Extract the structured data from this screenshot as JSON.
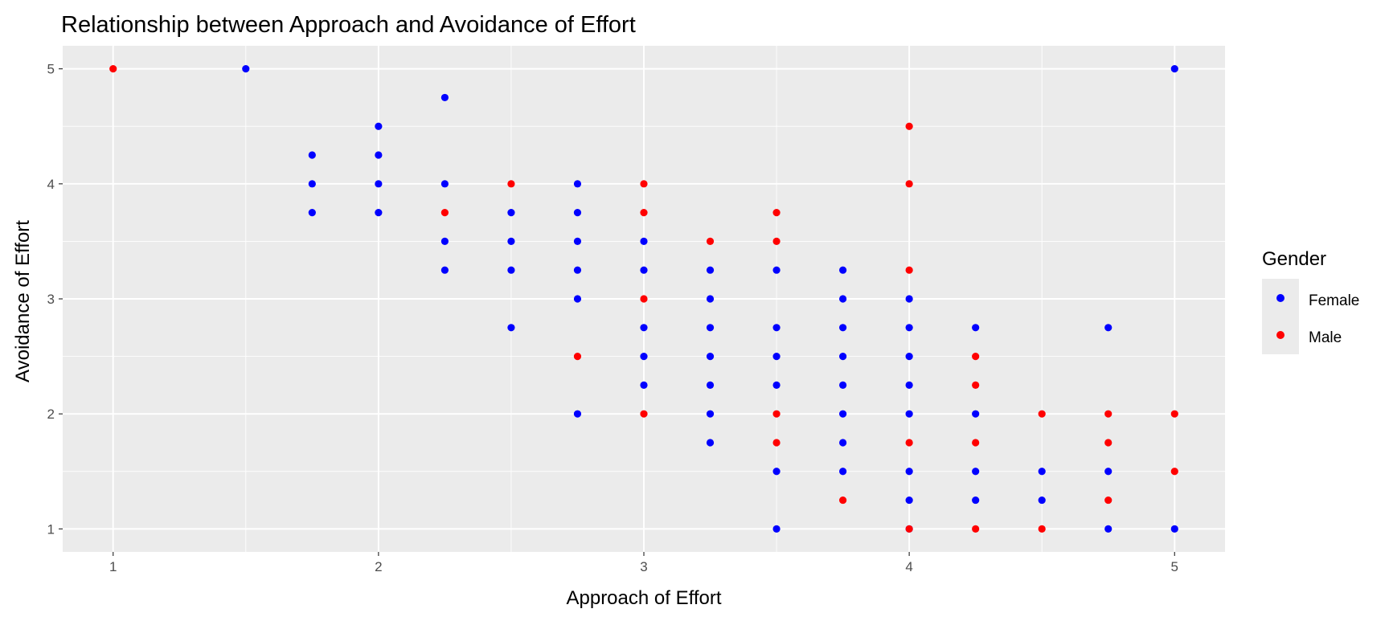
{
  "chart_data": {
    "type": "scatter",
    "title": "Relationship between Approach and Avoidance of Effort",
    "xlabel": "Approach of Effort",
    "ylabel": "Avoidance of Effort",
    "xlim": [
      0.81,
      5.19
    ],
    "ylim": [
      0.8,
      5.2
    ],
    "x_ticks": [
      "1",
      "2",
      "3",
      "4",
      "5"
    ],
    "y_ticks": [
      "1",
      "2",
      "3",
      "4",
      "5"
    ],
    "grid": true,
    "legend": {
      "title": "Gender",
      "position": "right"
    },
    "colors": {
      "panel": "#ebebeb",
      "grid": "#ffffff",
      "Female": "#0000ff",
      "Male": "#ff0000"
    },
    "series": [
      {
        "name": "Female",
        "color": "#0000ff",
        "points": [
          [
            1.5,
            5
          ],
          [
            1.75,
            4.25
          ],
          [
            1.75,
            4
          ],
          [
            1.75,
            3.75
          ],
          [
            2,
            4.5
          ],
          [
            2,
            4.25
          ],
          [
            2,
            4
          ],
          [
            2,
            3.75
          ],
          [
            2.25,
            4.75
          ],
          [
            2.25,
            4
          ],
          [
            2.25,
            3.5
          ],
          [
            2.25,
            3.25
          ],
          [
            2.5,
            3.75
          ],
          [
            2.5,
            3.5
          ],
          [
            2.5,
            3.25
          ],
          [
            2.5,
            2.75
          ],
          [
            2.75,
            4
          ],
          [
            2.75,
            3.75
          ],
          [
            2.75,
            3.5
          ],
          [
            2.75,
            3.25
          ],
          [
            2.75,
            3
          ],
          [
            2.75,
            2
          ],
          [
            3,
            3.5
          ],
          [
            3,
            3.25
          ],
          [
            3,
            2.75
          ],
          [
            3,
            2.5
          ],
          [
            3,
            2.25
          ],
          [
            3.25,
            3.25
          ],
          [
            3.25,
            3
          ],
          [
            3.25,
            2.75
          ],
          [
            3.25,
            2.5
          ],
          [
            3.25,
            2.25
          ],
          [
            3.25,
            2
          ],
          [
            3.25,
            1.75
          ],
          [
            3.5,
            3.25
          ],
          [
            3.5,
            2.75
          ],
          [
            3.5,
            2.5
          ],
          [
            3.5,
            2.25
          ],
          [
            3.5,
            1.5
          ],
          [
            3.5,
            1
          ],
          [
            3.75,
            3.25
          ],
          [
            3.75,
            3
          ],
          [
            3.75,
            2.75
          ],
          [
            3.75,
            2.5
          ],
          [
            3.75,
            2.25
          ],
          [
            3.75,
            2
          ],
          [
            3.75,
            1.75
          ],
          [
            3.75,
            1.5
          ],
          [
            4,
            3
          ],
          [
            4,
            2.75
          ],
          [
            4,
            2.5
          ],
          [
            4,
            2.25
          ],
          [
            4,
            2
          ],
          [
            4,
            1.5
          ],
          [
            4,
            1.25
          ],
          [
            4,
            1
          ],
          [
            4.25,
            2.75
          ],
          [
            4.25,
            2
          ],
          [
            4.25,
            1.5
          ],
          [
            4.25,
            1.25
          ],
          [
            4.5,
            1.5
          ],
          [
            4.5,
            1.25
          ],
          [
            4.75,
            2.75
          ],
          [
            4.75,
            1.5
          ],
          [
            4.75,
            1
          ],
          [
            5,
            5
          ],
          [
            5,
            1
          ]
        ]
      },
      {
        "name": "Male",
        "color": "#ff0000",
        "points": [
          [
            1,
            5
          ],
          [
            2.25,
            3.75
          ],
          [
            2.5,
            4
          ],
          [
            2.75,
            2.5
          ],
          [
            3,
            4
          ],
          [
            3,
            3.75
          ],
          [
            3,
            3
          ],
          [
            3,
            2
          ],
          [
            3.25,
            3.5
          ],
          [
            3.5,
            3.75
          ],
          [
            3.5,
            3.5
          ],
          [
            3.5,
            2
          ],
          [
            3.5,
            1.75
          ],
          [
            3.75,
            1.25
          ],
          [
            4,
            4.5
          ],
          [
            4,
            4
          ],
          [
            4,
            3.25
          ],
          [
            4,
            1.75
          ],
          [
            4,
            1
          ],
          [
            4.25,
            2.5
          ],
          [
            4.25,
            2.25
          ],
          [
            4.25,
            1.75
          ],
          [
            4.25,
            1
          ],
          [
            4.5,
            2
          ],
          [
            4.5,
            1
          ],
          [
            4.75,
            2
          ],
          [
            4.75,
            1.75
          ],
          [
            4.75,
            1.25
          ],
          [
            5,
            2
          ],
          [
            5,
            1.5
          ]
        ]
      }
    ]
  }
}
